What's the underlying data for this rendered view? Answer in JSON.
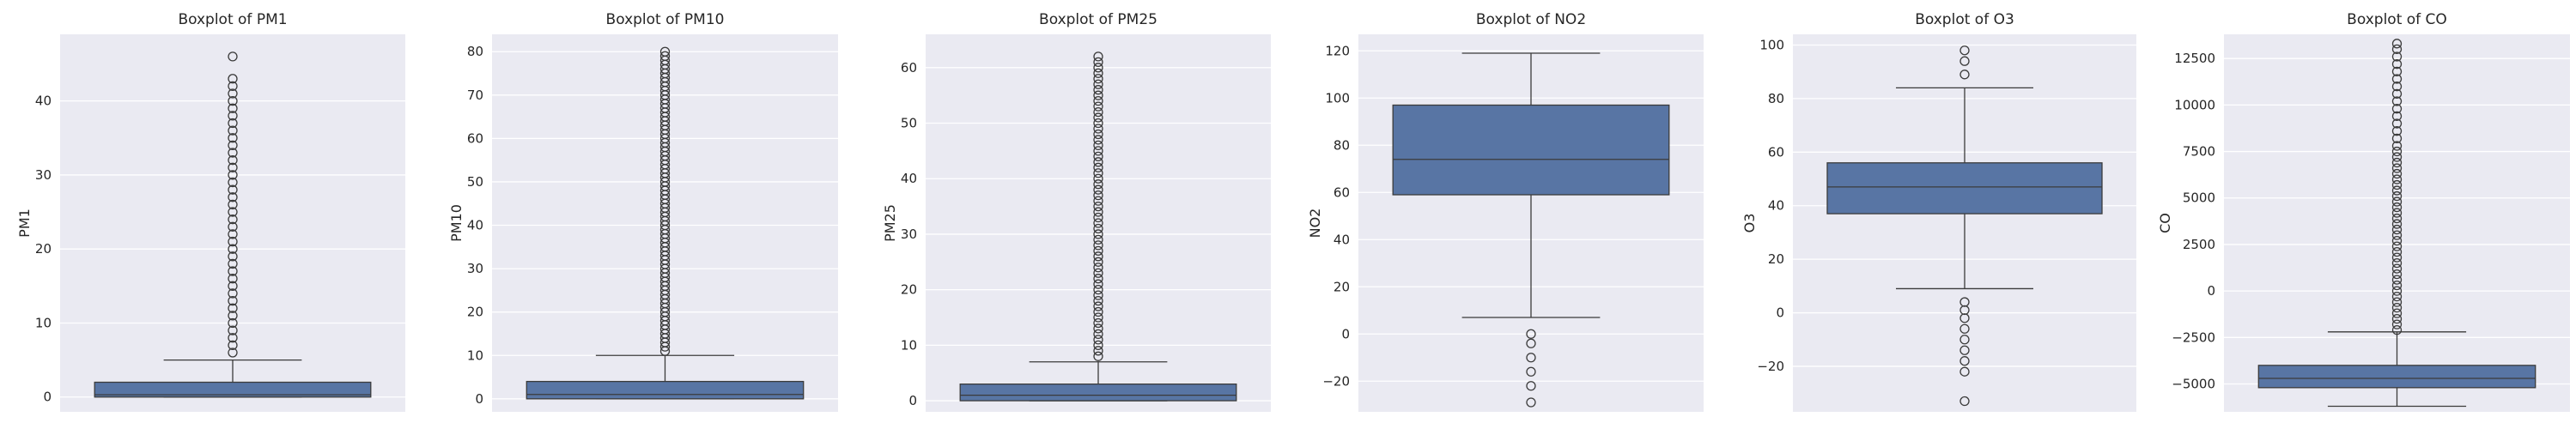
{
  "figure": {
    "background": "#ffffff",
    "axes_background": "#eaeaf2",
    "grid_color": "#ffffff",
    "box_color": "#5875a4",
    "line_color": "#3b3b3b"
  },
  "chart_data": [
    {
      "type": "box",
      "title": "Boxplot of PM1",
      "ylabel": "PM1",
      "xlabel": "",
      "ylim": [
        -2,
        49
      ],
      "yticks": [
        0,
        10,
        20,
        30,
        40
      ],
      "grid": true,
      "box": {
        "whisker_low": 0,
        "q1": 0,
        "median": 0.3,
        "q3": 2,
        "whisker_high": 5
      },
      "outliers": [
        6,
        7,
        8,
        9,
        10,
        11,
        12,
        13,
        14,
        15,
        16,
        17,
        18,
        19,
        20,
        21,
        22,
        23,
        24,
        25,
        26,
        27,
        28,
        29,
        30,
        31,
        32,
        33,
        34,
        35,
        36,
        37,
        38,
        39,
        40,
        41,
        42,
        43,
        46
      ]
    },
    {
      "type": "box",
      "title": "Boxplot of PM10",
      "ylabel": "PM10",
      "xlabel": "",
      "ylim": [
        -3,
        84
      ],
      "yticks": [
        0,
        10,
        20,
        30,
        40,
        50,
        60,
        70,
        80
      ],
      "grid": true,
      "box": {
        "whisker_low": 0,
        "q1": 0,
        "median": 1,
        "q3": 4,
        "whisker_high": 10
      },
      "outliers": [
        11,
        12,
        13,
        14,
        15,
        16,
        17,
        18,
        19,
        20,
        21,
        22,
        23,
        24,
        25,
        26,
        27,
        28,
        29,
        30,
        31,
        32,
        33,
        34,
        35,
        36,
        37,
        38,
        39,
        40,
        41,
        42,
        43,
        44,
        45,
        46,
        47,
        48,
        49,
        50,
        51,
        52,
        53,
        54,
        55,
        56,
        57,
        58,
        59,
        60,
        61,
        62,
        63,
        64,
        65,
        66,
        67,
        68,
        69,
        70,
        71,
        72,
        73,
        74,
        75,
        76,
        77,
        78,
        79,
        80
      ]
    },
    {
      "type": "box",
      "title": "Boxplot of PM25",
      "ylabel": "PM25",
      "xlabel": "",
      "ylim": [
        -2,
        66
      ],
      "yticks": [
        0,
        10,
        20,
        30,
        40,
        50,
        60
      ],
      "grid": true,
      "box": {
        "whisker_low": 0,
        "q1": 0,
        "median": 1,
        "q3": 3,
        "whisker_high": 7
      },
      "outliers": [
        8,
        9,
        10,
        11,
        12,
        13,
        14,
        15,
        16,
        17,
        18,
        19,
        20,
        21,
        22,
        23,
        24,
        25,
        26,
        27,
        28,
        29,
        30,
        31,
        32,
        33,
        34,
        35,
        36,
        37,
        38,
        39,
        40,
        41,
        42,
        43,
        44,
        45,
        46,
        47,
        48,
        49,
        50,
        51,
        52,
        53,
        54,
        55,
        56,
        57,
        58,
        59,
        60,
        61,
        62
      ]
    },
    {
      "type": "box",
      "title": "Boxplot of NO2",
      "ylabel": "NO2",
      "xlabel": "",
      "ylim": [
        -33,
        127
      ],
      "yticks": [
        -20,
        0,
        20,
        40,
        60,
        80,
        100,
        120
      ],
      "grid": true,
      "box": {
        "whisker_low": 7,
        "q1": 59,
        "median": 74,
        "q3": 97,
        "whisker_high": 119
      },
      "outliers": [
        0,
        -4,
        -10,
        -16,
        -22,
        -29
      ]
    },
    {
      "type": "box",
      "title": "Boxplot of O3",
      "ylabel": "O3",
      "xlabel": "",
      "ylim": [
        -37,
        104
      ],
      "yticks": [
        -20,
        0,
        20,
        40,
        60,
        80,
        100
      ],
      "grid": true,
      "box": {
        "whisker_low": 9,
        "q1": 37,
        "median": 47,
        "q3": 56,
        "whisker_high": 84
      },
      "outliers": [
        89,
        94,
        98,
        4,
        1,
        -2,
        -6,
        -10,
        -14,
        -18,
        -22,
        -33
      ]
    },
    {
      "type": "box",
      "title": "Boxplot of CO",
      "ylabel": "CO",
      "xlabel": "",
      "ylim": [
        -6500,
        13800
      ],
      "yticks": [
        -5000,
        -2500,
        0,
        2500,
        5000,
        7500,
        10000,
        12500
      ],
      "grid": true,
      "box": {
        "whisker_low": -6200,
        "q1": -5200,
        "median": -4700,
        "q3": -4000,
        "whisker_high": -2200
      },
      "outliers": [
        -2100,
        -1800,
        -1500,
        -1200,
        -900,
        -600,
        -300,
        0,
        300,
        600,
        900,
        1200,
        1500,
        1800,
        2100,
        2400,
        2700,
        3000,
        3300,
        3600,
        3900,
        4200,
        4500,
        4800,
        5100,
        5400,
        5700,
        6000,
        6300,
        6600,
        6900,
        7200,
        7500,
        7800,
        8200,
        8600,
        9000,
        9400,
        9800,
        10200,
        10600,
        11000,
        11400,
        11800,
        12200,
        12600,
        13000,
        13300
      ]
    }
  ]
}
